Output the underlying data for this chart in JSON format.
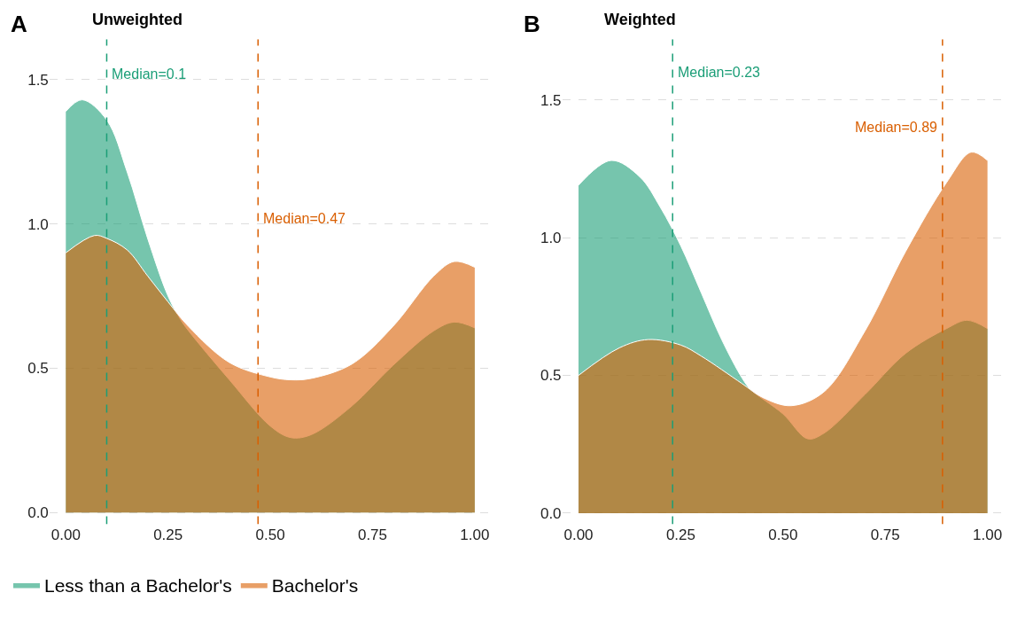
{
  "chart_data": [
    {
      "type": "area",
      "title": "Unweighted",
      "annotations": [
        "A"
      ],
      "xlim": [
        -0.04,
        1.04
      ],
      "ylim": [
        -0.04,
        1.64
      ],
      "xticks": [
        {
          "value": 0,
          "label": "0.00"
        },
        {
          "value": 0.25,
          "label": "0.25"
        },
        {
          "value": 0.5,
          "label": "0.50"
        },
        {
          "value": 0.75,
          "label": "0.75"
        },
        {
          "value": 1,
          "label": "1.00"
        }
      ],
      "yticks": [
        {
          "value": 0,
          "label": "0.0"
        },
        {
          "value": 0.5,
          "label": "0.5"
        },
        {
          "value": 1,
          "label": "1.0"
        },
        {
          "value": 1.5,
          "label": "1.5"
        }
      ],
      "grid": "y",
      "legend": "bottom left",
      "series": [
        {
          "name": "Less than a Bachelor's",
          "color": "#1b9e77",
          "x": [
            0,
            0.04,
            0.1,
            0.15,
            0.2,
            0.25,
            0.28,
            0.3,
            0.4,
            0.5,
            0.55,
            0.6,
            0.7,
            0.8,
            0.9,
            0.95,
            1.0
          ],
          "values": [
            1.39,
            1.43,
            1.36,
            1.18,
            0.95,
            0.75,
            0.67,
            0.63,
            0.46,
            0.3,
            0.26,
            0.27,
            0.37,
            0.51,
            0.63,
            0.66,
            0.64
          ]
        },
        {
          "name": "Bachelor's",
          "color": "#d95f02",
          "x": [
            0,
            0.07,
            0.1,
            0.15,
            0.2,
            0.25,
            0.3,
            0.4,
            0.5,
            0.55,
            0.6,
            0.7,
            0.8,
            0.9,
            0.95,
            1.0
          ],
          "values": [
            0.9,
            0.96,
            0.95,
            0.91,
            0.82,
            0.73,
            0.645,
            0.52,
            0.47,
            0.46,
            0.465,
            0.515,
            0.645,
            0.82,
            0.87,
            0.85
          ]
        }
      ],
      "ref_lines": [
        {
          "axis": "x",
          "value": 0.1,
          "label": "Median=0.1",
          "color": "#1b9e77",
          "line_style": "dashed"
        },
        {
          "axis": "x",
          "value": 0.47,
          "label": "Median=0.47",
          "color": "#d95f02",
          "line_style": "dashed"
        }
      ]
    },
    {
      "type": "area",
      "title": "Weighted",
      "annotations": [
        "B"
      ],
      "xlim": [
        -0.04,
        1.04
      ],
      "ylim": [
        -0.04,
        1.72
      ],
      "xticks": [
        {
          "value": 0,
          "label": "0.00"
        },
        {
          "value": 0.25,
          "label": "0.25"
        },
        {
          "value": 0.5,
          "label": "0.50"
        },
        {
          "value": 0.75,
          "label": "0.75"
        },
        {
          "value": 1,
          "label": "1.00"
        }
      ],
      "yticks": [
        {
          "value": 0,
          "label": "0.0"
        },
        {
          "value": 0.5,
          "label": "0.5"
        },
        {
          "value": 1,
          "label": "1.0"
        },
        {
          "value": 1.5,
          "label": "1.5"
        }
      ],
      "grid": "y",
      "series": [
        {
          "color": "#1b9e77",
          "x": [
            0,
            0.08,
            0.15,
            0.2,
            0.25,
            0.3,
            0.35,
            0.4,
            0.42,
            0.5,
            0.56,
            0.6,
            0.7,
            0.8,
            0.9,
            0.95,
            1.0
          ],
          "values": [
            1.19,
            1.28,
            1.22,
            1.11,
            0.97,
            0.8,
            0.63,
            0.49,
            0.45,
            0.36,
            0.27,
            0.29,
            0.43,
            0.58,
            0.67,
            0.7,
            0.67
          ]
        },
        {
          "color": "#d95f02",
          "x": [
            0,
            0.1,
            0.17,
            0.25,
            0.3,
            0.4,
            0.45,
            0.52,
            0.6,
            0.7,
            0.8,
            0.9,
            0.96,
            1.0
          ],
          "values": [
            0.5,
            0.6,
            0.63,
            0.61,
            0.57,
            0.47,
            0.42,
            0.39,
            0.44,
            0.66,
            0.95,
            1.2,
            1.31,
            1.28
          ]
        }
      ],
      "ref_lines": [
        {
          "axis": "x",
          "value": 0.23,
          "label": "Median=0.23",
          "color": "#1b9e77",
          "line_style": "dashed"
        },
        {
          "axis": "x",
          "value": 0.89,
          "label": "Median=0.89",
          "color": "#d95f02",
          "line_style": "dashed"
        }
      ]
    }
  ]
}
